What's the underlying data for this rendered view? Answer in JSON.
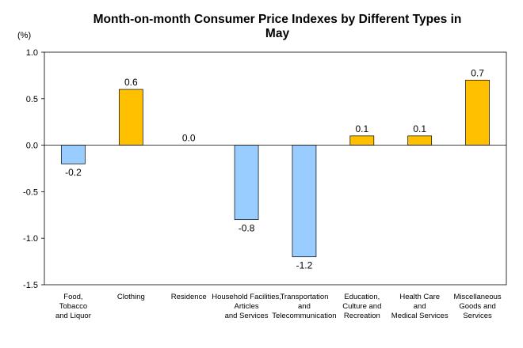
{
  "chart_data": {
    "type": "bar",
    "title": "Month-on-month Consumer Price Indexes by Different Types in May",
    "title_lines": [
      "Month-on-month Consumer Price Indexes by Different Types in",
      "May"
    ],
    "unit_label": "(%)",
    "ylim": [
      -1.5,
      1.0
    ],
    "yticks": [
      "1.0",
      "0.5",
      "0.0",
      "-0.5",
      "-1.0",
      "-1.5"
    ],
    "ytick_values": [
      1.0,
      0.5,
      0.0,
      -0.5,
      -1.0,
      -1.5
    ],
    "grid": false,
    "legend": "none",
    "categories": [
      "Food, Tobacco and Liquor",
      "Clothing",
      "Residence",
      "Household Facilities, Articles and Services",
      "Transportation and Telecommunication",
      "Education, Culture and Recreation",
      "Health Care and Medical Services",
      "Miscellaneous Goods and Services"
    ],
    "category_lines": [
      [
        "Food,",
        "Tobacco",
        "and Liquor"
      ],
      [
        "Clothing"
      ],
      [
        "Residence"
      ],
      [
        "Household Facilities,",
        "Articles",
        "and Services"
      ],
      [
        "Transportation",
        "and",
        "Telecommunication"
      ],
      [
        "Education,",
        "Culture and",
        "Recreation"
      ],
      [
        "Health Care",
        "and",
        "Medical Services"
      ],
      [
        "Miscellaneous",
        "Goods and",
        "Services"
      ]
    ],
    "values": [
      -0.2,
      0.6,
      0.0,
      -0.8,
      -1.2,
      0.1,
      0.1,
      0.7
    ],
    "value_labels": [
      "-0.2",
      "0.6",
      "0.0",
      "-0.8",
      "-1.2",
      "0.1",
      "0.1",
      "0.7"
    ],
    "colors": {
      "positive": "#FFC000",
      "negative": "#99CCFF",
      "bar_stroke": "#000000",
      "axis": "#000000",
      "frame": "#000000"
    }
  }
}
